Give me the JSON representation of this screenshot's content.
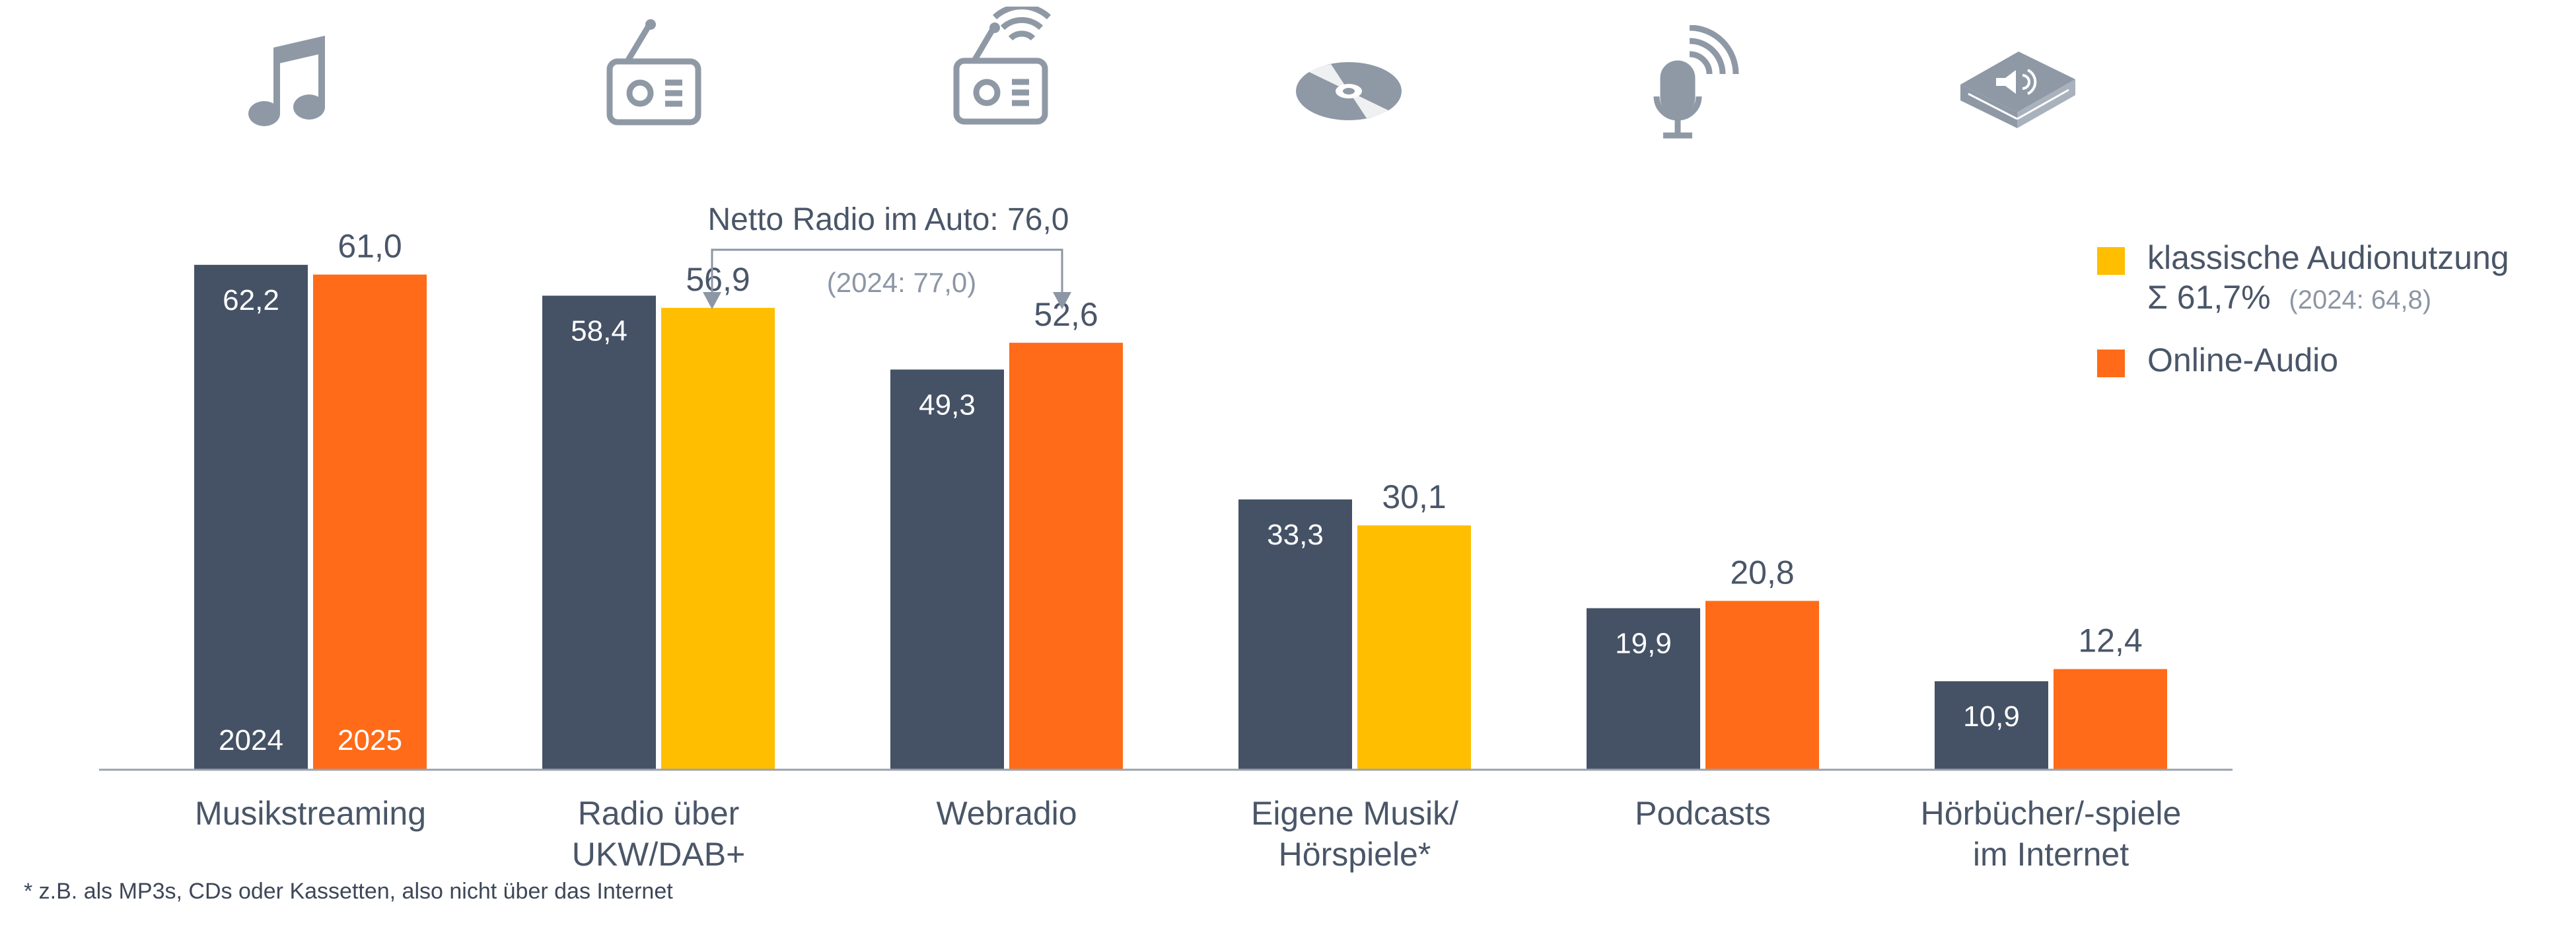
{
  "chart_data": {
    "type": "bar",
    "categories": [
      "Musikstreaming",
      "Radio über\nUKW/DAB+",
      "Webradio",
      "Eigene Musik/\nHörspiele*",
      "Podcasts",
      "Hörbücher/-spiele\nim Internet"
    ],
    "series": [
      {
        "name": "2024",
        "values": [
          62.2,
          58.4,
          49.3,
          33.3,
          19.9,
          10.9
        ]
      },
      {
        "name": "2025",
        "values": [
          61.0,
          56.9,
          52.6,
          30.1,
          20.8,
          12.4
        ]
      }
    ],
    "value_labels_2024": [
      "62,2",
      "58,4",
      "49,3",
      "33,3",
      "19,9",
      "10,9"
    ],
    "value_labels_2025": [
      "61,0",
      "56,9",
      "52,6",
      "30,1",
      "20,8",
      "12,4"
    ],
    "series_2025_classes": [
      "online",
      "klassisch",
      "online",
      "klassisch",
      "online",
      "online"
    ],
    "ylim": [
      0,
      70
    ],
    "grid": false,
    "colors": {
      "2024": "#455265",
      "online": "#ff6b18",
      "klassisch": "#ffbe00",
      "axis": "#9aa2ad",
      "text": "#4a5668",
      "icon": "#8f99a6"
    }
  },
  "annotation": {
    "title": "Netto Radio im Auto: 76,0",
    "subtitle": "(2024: 77,0)"
  },
  "legend": {
    "classic_label": "klassische Audionutzung",
    "classic_sum": "Σ 61,7%",
    "classic_prev": "(2024: 64,8)",
    "online_label": "Online-Audio"
  },
  "icons": [
    "music-note-icon",
    "radio-icon",
    "web-radio-icon",
    "cd-icon",
    "podcast-microphone-icon",
    "audiobook-icon"
  ],
  "footnote": "* z.B. als MP3s, CDs oder Kassetten, also nicht über das Internet"
}
